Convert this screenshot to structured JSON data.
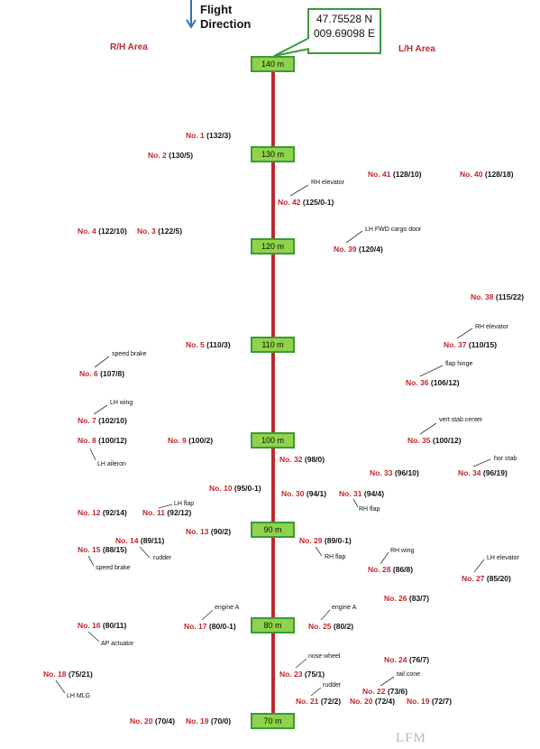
{
  "header": {
    "direction_line1": "Flight",
    "direction_line2": "Direction",
    "coord_lat": "47.75528 N",
    "coord_lon": "009.69098 E",
    "rh_area": "R/H Area",
    "lh_area": "L/H Area"
  },
  "markers": [
    "140 m",
    "130 m",
    "120 m",
    "110 m",
    "100 m",
    "90 m",
    "80 m",
    "70 m"
  ],
  "points": [
    {
      "no": "No. 1",
      "val": "(132/3)"
    },
    {
      "no": "No. 2",
      "val": "(130/5)"
    },
    {
      "no": "No. 3",
      "val": "(122/5)"
    },
    {
      "no": "No. 4",
      "val": "(122/10)"
    },
    {
      "no": "No. 5",
      "val": "(110/3)"
    },
    {
      "no": "No. 6",
      "val": "(107/8)"
    },
    {
      "no": "No. 7",
      "val": "(102/10)"
    },
    {
      "no": "No. 8",
      "val": "(100/12)"
    },
    {
      "no": "No. 9",
      "val": "(100/2)"
    },
    {
      "no": "No. 10",
      "val": "(95/0-1)"
    },
    {
      "no": "No. 11",
      "val": "(92/12)"
    },
    {
      "no": "No. 12",
      "val": "(92/14)"
    },
    {
      "no": "No. 13",
      "val": "(90/2)"
    },
    {
      "no": "No. 14",
      "val": "(89/11)"
    },
    {
      "no": "No. 15",
      "val": "(88/15)"
    },
    {
      "no": "No. 16",
      "val": "(80/11)"
    },
    {
      "no": "No. 17",
      "val": "(80/0-1)"
    },
    {
      "no": "No. 18",
      "val": "(75/21)"
    },
    {
      "no": "No. 19",
      "val": "(70/0)"
    },
    {
      "no": "No. 20",
      "val": "(70/4)"
    },
    {
      "no": "No. 19",
      "val": "(72/7)"
    },
    {
      "no": "No. 20",
      "val": "(72/4)"
    },
    {
      "no": "No. 21",
      "val": "(72/2)"
    },
    {
      "no": "No. 22",
      "val": "(73/6)"
    },
    {
      "no": "No. 23",
      "val": "(75/1)"
    },
    {
      "no": "No. 24",
      "val": "(76/7)"
    },
    {
      "no": "No. 25",
      "val": "(80/2)"
    },
    {
      "no": "No. 26",
      "val": "(83/7)"
    },
    {
      "no": "No. 27",
      "val": "(85/20)"
    },
    {
      "no": "No. 28",
      "val": "(86/8)"
    },
    {
      "no": "No. 29",
      "val": "(89/0-1)"
    },
    {
      "no": "No. 30",
      "val": "(94/1)"
    },
    {
      "no": "No. 31",
      "val": "(94/4)"
    },
    {
      "no": "No. 32",
      "val": "(98/0)"
    },
    {
      "no": "No. 33",
      "val": "(96/10)"
    },
    {
      "no": "No. 34",
      "val": "(96/19)"
    },
    {
      "no": "No. 35",
      "val": "(100/12)"
    },
    {
      "no": "No. 36",
      "val": "(106/12)"
    },
    {
      "no": "No. 37",
      "val": "(110/15)"
    },
    {
      "no": "No. 38",
      "val": "(115/22)"
    },
    {
      "no": "No. 39",
      "val": "(120/4)"
    },
    {
      "no": "No. 40",
      "val": "(128/18)"
    },
    {
      "no": "No. 41",
      "val": "(128/10)"
    },
    {
      "no": "No. 42",
      "val": "(125/0-1)"
    }
  ],
  "notes": [
    "RH elevator",
    "LH FWD cargo door",
    "RH elevator",
    "speed brake",
    "flap hinge",
    "LH wing",
    "vert stab center",
    "LH aileron",
    "hor stab",
    "LH flap",
    "RH flap",
    "rudder",
    "RH flap",
    "RH wing",
    "LH elevator",
    "speed brake",
    "engine A",
    "engine A",
    "AP actuator",
    "nose wheel",
    "tail cone",
    "rudder",
    "LH MLG"
  ],
  "watermark": "LFM"
}
